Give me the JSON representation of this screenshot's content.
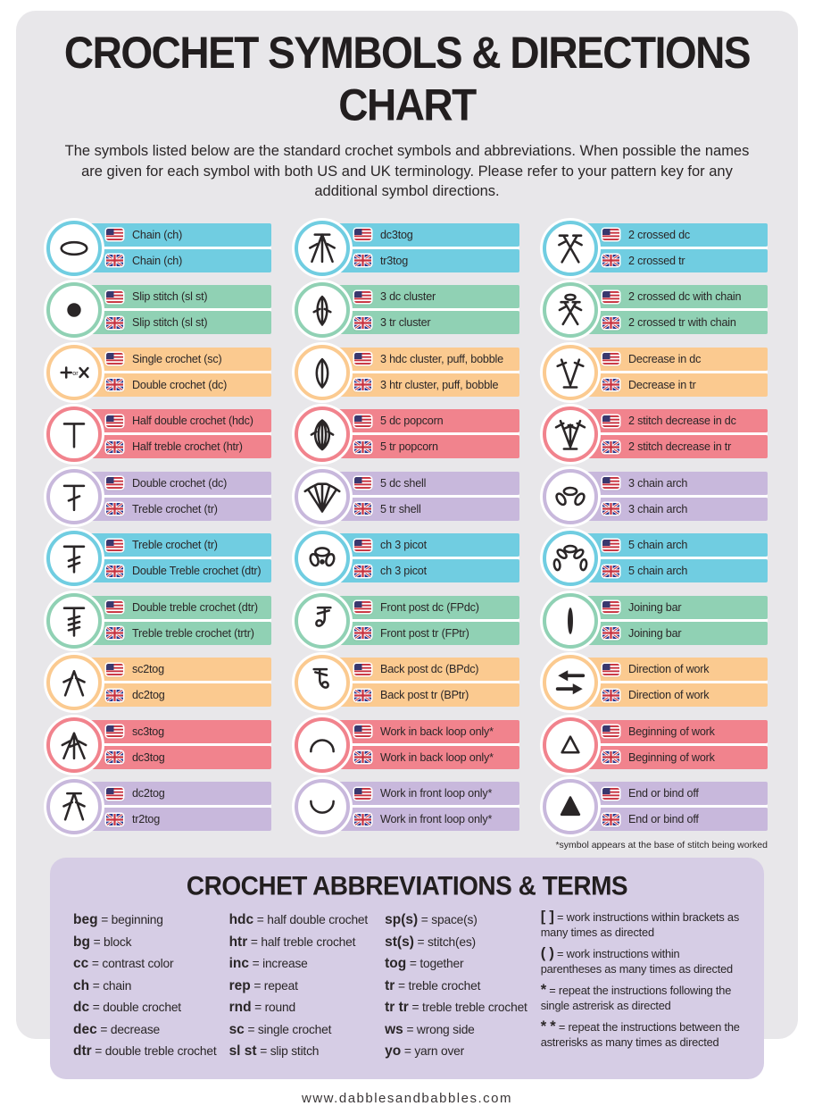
{
  "header": {
    "title": "CROCHET SYMBOLS & DIRECTIONS CHART",
    "intro": "The symbols listed below are the standard crochet symbols and abbreviations. When possible the names are given for each symbol with both US and UK terminology. Please refer to your pattern key for any additional symbol directions."
  },
  "colors": {
    "cyan": "#70cde1",
    "green": "#90d1b4",
    "orange": "#fbca90",
    "red": "#f1838d",
    "purple": "#c8b8dc",
    "card_bg": "#e8e7ea",
    "panel_bg": "#d6cde5",
    "page_bg": "#ffffff",
    "text": "#2a2627"
  },
  "symbol_columns": [
    [
      {
        "icon": "chain-loop-icon",
        "color": "cyan",
        "us": "Chain (ch)",
        "uk": "Chain (ch)"
      },
      {
        "icon": "slip-stitch-dot-icon",
        "color": "green",
        "us": "Slip stitch (sl st)",
        "uk": "Slip stitch (sl st)"
      },
      {
        "icon": "plus-or-x-icon",
        "color": "orange",
        "us": "Single crochet (sc)",
        "uk": "Double crochet (dc)"
      },
      {
        "icon": "t-bar-icon",
        "color": "red",
        "us": "Half double crochet (hdc)",
        "uk": "Half treble crochet (htr)"
      },
      {
        "icon": "t-bar-1-tick-icon",
        "color": "purple",
        "us": "Double crochet (dc)",
        "uk": "Treble crochet (tr)"
      },
      {
        "icon": "t-bar-2-tick-icon",
        "color": "cyan",
        "us": "Treble crochet (tr)",
        "uk": "Double Treble crochet (dtr)"
      },
      {
        "icon": "t-bar-3-tick-icon",
        "color": "green",
        "us": "Double treble crochet (dtr)",
        "uk": "Treble treble crochet (trtr)"
      },
      {
        "icon": "two-leg-decrease-icon",
        "color": "orange",
        "us": "sc2tog",
        "uk": "dc2tog"
      },
      {
        "icon": "three-leg-decrease-icon",
        "color": "red",
        "us": "sc3tog",
        "uk": "dc3tog"
      },
      {
        "icon": "two-leg-decrease-bar-icon",
        "color": "purple",
        "us": "dc2tog",
        "uk": "tr2tog"
      }
    ],
    [
      {
        "icon": "three-leg-decrease-bar-icon",
        "color": "cyan",
        "us": "dc3tog",
        "uk": "tr3tog"
      },
      {
        "icon": "cluster-ticks-icon",
        "color": "green",
        "us": "3 dc cluster",
        "uk": "3 tr cluster"
      },
      {
        "icon": "puff-icon",
        "color": "orange",
        "us": "3 hdc cluster, puff, bobble",
        "uk": "3 htr cluster, puff, bobble"
      },
      {
        "icon": "popcorn-icon",
        "color": "red",
        "us": "5 dc popcorn",
        "uk": "5 tr popcorn"
      },
      {
        "icon": "shell-icon",
        "color": "purple",
        "us": "5 dc shell",
        "uk": "5 tr shell"
      },
      {
        "icon": "picot-icon",
        "color": "cyan",
        "us": "ch 3 picot",
        "uk": "ch 3 picot"
      },
      {
        "icon": "front-post-icon",
        "color": "green",
        "us": "Front post dc (FPdc)",
        "uk": "Front post tr (FPtr)"
      },
      {
        "icon": "back-post-icon",
        "color": "orange",
        "us": "Back post dc (BPdc)",
        "uk": "Back post tr (BPtr)"
      },
      {
        "icon": "back-loop-arc-icon",
        "color": "red",
        "us": "Work in back loop only*",
        "uk": "Work in back loop only*"
      },
      {
        "icon": "front-loop-arc-icon",
        "color": "purple",
        "us": "Work in front loop only*",
        "uk": "Work in front loop only*"
      }
    ],
    [
      {
        "icon": "crossed-stitches-icon",
        "color": "cyan",
        "us": "2 crossed dc",
        "uk": "2 crossed tr"
      },
      {
        "icon": "crossed-chain-icon",
        "color": "green",
        "us": "2 crossed dc with chain",
        "uk": "2 crossed tr with chain"
      },
      {
        "icon": "v-decrease-icon",
        "color": "orange",
        "us": "Decrease in dc",
        "uk": "Decrease in tr"
      },
      {
        "icon": "v-decrease-2-icon",
        "color": "red",
        "us": "2 stitch decrease in dc",
        "uk": "2 stitch decrease in tr"
      },
      {
        "icon": "chain-arch-3-icon",
        "color": "purple",
        "us": "3 chain arch",
        "uk": "3 chain arch"
      },
      {
        "icon": "chain-arch-5-icon",
        "color": "cyan",
        "us": "5 chain arch",
        "uk": "5 chain arch"
      },
      {
        "icon": "joining-bar-icon",
        "color": "green",
        "us": "Joining bar",
        "uk": "Joining bar"
      },
      {
        "icon": "direction-arrows-icon",
        "color": "orange",
        "us": "Direction of work",
        "uk": "Direction of work"
      },
      {
        "icon": "triangle-outline-icon",
        "color": "red",
        "us": "Beginning of work",
        "uk": "Beginning of work"
      },
      {
        "icon": "triangle-filled-icon",
        "color": "purple",
        "us": "End or bind off",
        "uk": "End or bind off"
      }
    ]
  ],
  "footnote": "*symbol appears at the base of stitch being worked",
  "abbreviations": {
    "title": "CROCHET ABBREVIATIONS & TERMS",
    "columns": [
      [
        {
          "abbr": "beg",
          "meaning": "beginning"
        },
        {
          "abbr": "bg",
          "meaning": "block"
        },
        {
          "abbr": "cc",
          "meaning": "contrast color"
        },
        {
          "abbr": "ch",
          "meaning": "chain"
        },
        {
          "abbr": "dc",
          "meaning": "double crochet"
        },
        {
          "abbr": "dec",
          "meaning": "decrease"
        },
        {
          "abbr": "dtr",
          "meaning": "double treble crochet"
        }
      ],
      [
        {
          "abbr": "hdc",
          "meaning": "half double crochet"
        },
        {
          "abbr": "htr",
          "meaning": "half treble crochet"
        },
        {
          "abbr": "inc",
          "meaning": "increase"
        },
        {
          "abbr": "rep",
          "meaning": "repeat"
        },
        {
          "abbr": "rnd",
          "meaning": "round"
        },
        {
          "abbr": "sc",
          "meaning": "single crochet"
        },
        {
          "abbr": "sl st",
          "meaning": "slip stitch"
        }
      ],
      [
        {
          "abbr": "sp(s)",
          "meaning": "space(s)"
        },
        {
          "abbr": "st(s)",
          "meaning": "stitch(es)"
        },
        {
          "abbr": "tog",
          "meaning": "together"
        },
        {
          "abbr": "tr",
          "meaning": "treble crochet"
        },
        {
          "abbr": "tr tr",
          "meaning": "treble treble crochet"
        },
        {
          "abbr": "ws",
          "meaning": "wrong side"
        },
        {
          "abbr": "yo",
          "meaning": "yarn over"
        }
      ],
      [
        {
          "abbr": "[ ]",
          "meaning": "work instructions within brackets as many times as directed"
        },
        {
          "abbr": "( )",
          "meaning": "work instructions within parentheses as many times as directed"
        },
        {
          "abbr": "*",
          "meaning": "repeat the instructions following the single astrerisk as directed"
        },
        {
          "abbr": "* *",
          "meaning": "repeat the instructions between the astrerisks as many times as directed"
        }
      ]
    ]
  },
  "footer": {
    "url": "www.dabblesandbabbles.com"
  }
}
